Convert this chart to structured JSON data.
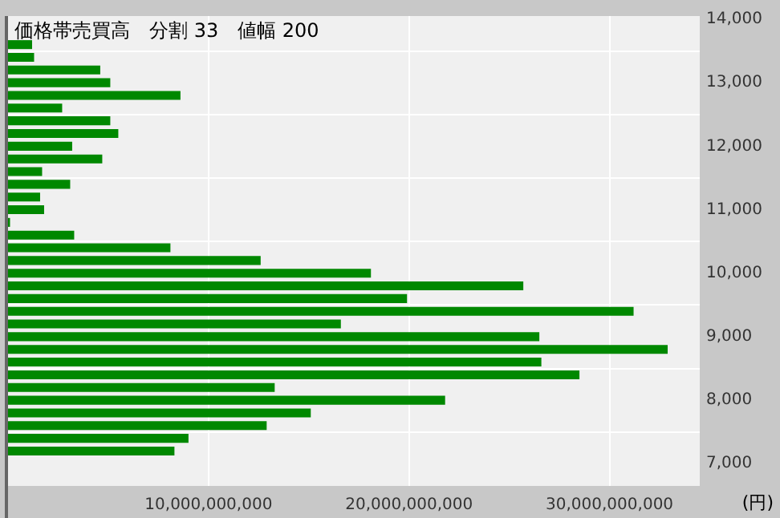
{
  "chart_data": {
    "type": "bar",
    "orientation": "horizontal",
    "title": "価格帯売買高　分割 33　値幅 200",
    "xlabel": "(円)",
    "x": [
      13600,
      13400,
      13200,
      13000,
      12800,
      12600,
      12400,
      12200,
      12000,
      11800,
      11600,
      11400,
      11200,
      11000,
      10800,
      10600,
      10400,
      10200,
      10000,
      9800,
      9600,
      9400,
      9200,
      9000,
      8800,
      8600,
      8400,
      8200,
      8000,
      7800,
      7600,
      7400,
      7200
    ],
    "values": [
      1200000000,
      1300000000,
      4600000000,
      5100000000,
      8600000000,
      2700000000,
      5100000000,
      5500000000,
      3200000000,
      4700000000,
      1700000000,
      3100000000,
      1600000000,
      1800000000,
      100000000,
      3300000000,
      8100000000,
      12600000000,
      18100000000,
      25700000000,
      19900000000,
      31200000000,
      16600000000,
      26500000000,
      32900000000,
      26600000000,
      28500000000,
      13300000000,
      21800000000,
      15100000000,
      12900000000,
      9000000000,
      8300000000
    ],
    "color": "#008800",
    "xlim": [
      0,
      34500000000
    ],
    "xticks": [
      {
        "value": 10000000000,
        "label": "10,000,000,000"
      },
      {
        "value": 20000000000,
        "label": "20,000,000,000"
      },
      {
        "value": 30000000000,
        "label": "30,000,000,000"
      }
    ],
    "ylim": [
      6650,
      14050
    ],
    "yticks": [
      {
        "value": 7000,
        "label": "7,000"
      },
      {
        "value": 8000,
        "label": "8,000"
      },
      {
        "value": 9000,
        "label": "9,000"
      },
      {
        "value": 10000,
        "label": "10,000"
      },
      {
        "value": 11000,
        "label": "11,000"
      },
      {
        "value": 12000,
        "label": "12,000"
      },
      {
        "value": 13000,
        "label": "13,000"
      },
      {
        "value": 14000,
        "label": "14,000"
      }
    ],
    "grid": true
  }
}
